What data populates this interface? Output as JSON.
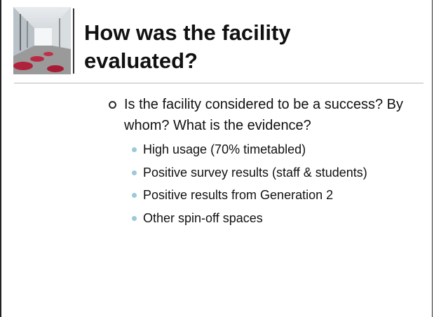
{
  "slide": {
    "title": "How was the facility evaluated?",
    "bullets": [
      {
        "text": "Is the facility considered to be a success? By whom? What is the evidence?",
        "sub_bullets": [
          "High usage (70% timetabled)",
          "Positive survey results (staff & students)",
          "Positive results from Generation 2",
          "Other spin-off spaces"
        ]
      }
    ]
  }
}
